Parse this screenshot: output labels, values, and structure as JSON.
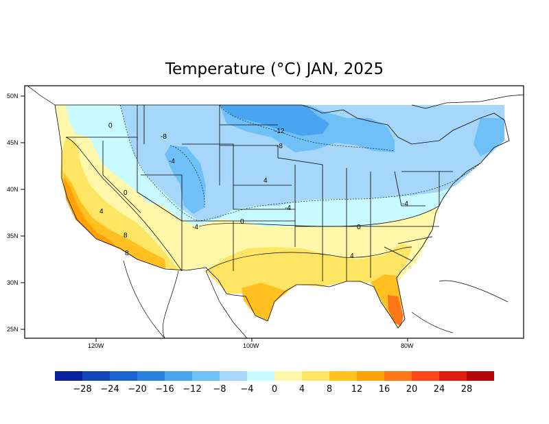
{
  "title": "Temperature (°C) JAN, 2025",
  "map": {
    "lat_labels": [
      "50N",
      "45N",
      "40N",
      "35N",
      "30N",
      "25N"
    ],
    "lon_labels": [
      "120W",
      "100W",
      "80W"
    ],
    "contour_labels": [
      {
        "text": "0"
      },
      {
        "text": "-8"
      },
      {
        "text": "-12"
      },
      {
        "text": "-8"
      },
      {
        "text": "-4"
      },
      {
        "text": "-4"
      },
      {
        "text": "0"
      },
      {
        "text": "-4"
      },
      {
        "text": "0"
      },
      {
        "text": "4"
      },
      {
        "text": "8"
      },
      {
        "text": "0"
      },
      {
        "text": "4"
      },
      {
        "text": "-4"
      },
      {
        "text": "8"
      },
      {
        "text": "4"
      }
    ]
  },
  "colorbar": {
    "colors": [
      "#0a22a0",
      "#1245b8",
      "#1a63d0",
      "#2a80e0",
      "#4aa5f0",
      "#70c0f8",
      "#a6d6fa",
      "#c8faff",
      "#fff7aa",
      "#ffe564",
      "#ffc020",
      "#ffa208",
      "#ff7818",
      "#ff4818",
      "#e01e10",
      "#b40808"
    ],
    "labels": [
      "−28",
      "−24",
      "−20",
      "−16",
      "−12",
      "−8",
      "−4",
      "0",
      "4",
      "8",
      "12",
      "16",
      "20",
      "24",
      "28"
    ]
  }
}
